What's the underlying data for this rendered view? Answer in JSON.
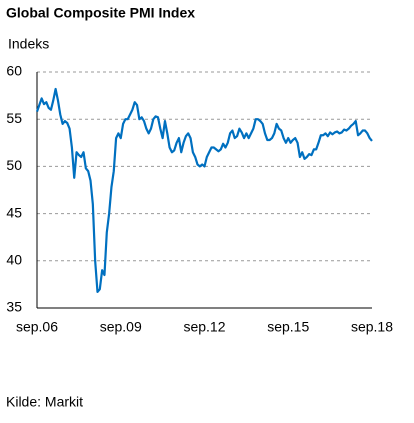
{
  "chart_data": {
    "type": "line",
    "title": "Global Composite PMI Index",
    "y_label": "Indeks",
    "source": "Kilde: Markit",
    "categories": [
      "sep.06",
      null,
      null,
      null,
      null,
      null,
      null,
      null,
      null,
      null,
      null,
      null,
      null,
      null,
      null,
      null,
      null,
      null,
      null,
      null,
      null,
      null,
      null,
      null,
      null,
      null,
      null,
      null,
      null,
      null,
      null,
      null,
      null,
      null,
      null,
      null,
      "sep.09",
      null,
      null,
      null,
      null,
      null,
      null,
      null,
      null,
      null,
      null,
      null,
      null,
      null,
      null,
      null,
      null,
      null,
      null,
      null,
      null,
      null,
      null,
      null,
      null,
      null,
      null,
      null,
      null,
      null,
      null,
      null,
      null,
      null,
      null,
      null,
      "sep.12",
      null,
      null,
      null,
      null,
      null,
      null,
      null,
      null,
      null,
      null,
      null,
      null,
      null,
      null,
      null,
      null,
      null,
      null,
      null,
      null,
      null,
      null,
      null,
      null,
      null,
      null,
      null,
      null,
      null,
      null,
      null,
      null,
      null,
      null,
      null,
      "sep.15",
      null,
      null,
      null,
      null,
      null,
      null,
      null,
      null,
      null,
      null,
      null,
      null,
      null,
      null,
      null,
      null,
      null,
      null,
      null,
      null,
      null,
      null,
      null,
      null,
      null,
      null,
      null,
      null,
      null,
      null,
      null,
      null,
      null,
      null,
      null,
      "sep.18"
    ],
    "values": [
      55.8,
      56.5,
      57.2,
      56.6,
      56.8,
      56.2,
      56.0,
      57.0,
      58.2,
      57.0,
      55.5,
      54.5,
      54.8,
      54.6,
      54.0,
      52.0,
      48.8,
      51.5,
      51.2,
      51.0,
      51.5,
      49.8,
      49.5,
      48.5,
      46.0,
      40.0,
      36.7,
      37.0,
      39.0,
      38.5,
      43.0,
      45.0,
      47.8,
      49.5,
      53.0,
      53.5,
      53.0,
      54.5,
      55.0,
      55.0,
      55.5,
      56.0,
      56.8,
      56.5,
      55.0,
      55.2,
      54.8,
      54.0,
      53.5,
      54.0,
      55.0,
      55.3,
      55.2,
      54.0,
      53.0,
      54.8,
      53.5,
      52.0,
      51.5,
      51.7,
      52.5,
      53.0,
      51.5,
      52.5,
      53.2,
      53.5,
      53.0,
      51.5,
      51.0,
      50.2,
      50.0,
      50.2,
      50.0,
      51.0,
      51.5,
      52.0,
      52.0,
      51.8,
      51.6,
      51.8,
      52.4,
      52.0,
      52.5,
      53.5,
      53.8,
      53.0,
      53.2,
      54.0,
      53.6,
      53.0,
      53.5,
      53.0,
      53.5,
      54.0,
      55.0,
      55.0,
      54.8,
      54.5,
      53.5,
      52.8,
      52.8,
      53.0,
      53.5,
      54.5,
      54.0,
      53.8,
      53.0,
      52.5,
      53.0,
      52.5,
      52.8,
      53.0,
      52.5,
      51.0,
      51.5,
      50.8,
      51.0,
      51.3,
      51.2,
      51.8,
      51.8,
      52.5,
      53.3,
      53.3,
      53.5,
      53.2,
      53.6,
      53.4,
      53.6,
      53.7,
      53.5,
      53.6,
      53.9,
      53.8,
      54.0,
      54.3,
      54.5,
      54.8,
      53.3,
      53.5,
      53.8,
      53.8,
      53.5,
      53.0,
      52.7
    ],
    "color": "#0070c0",
    "ylim": [
      35,
      60
    ],
    "yticks": [
      35,
      40,
      45,
      50,
      55,
      60
    ],
    "grid": true
  }
}
